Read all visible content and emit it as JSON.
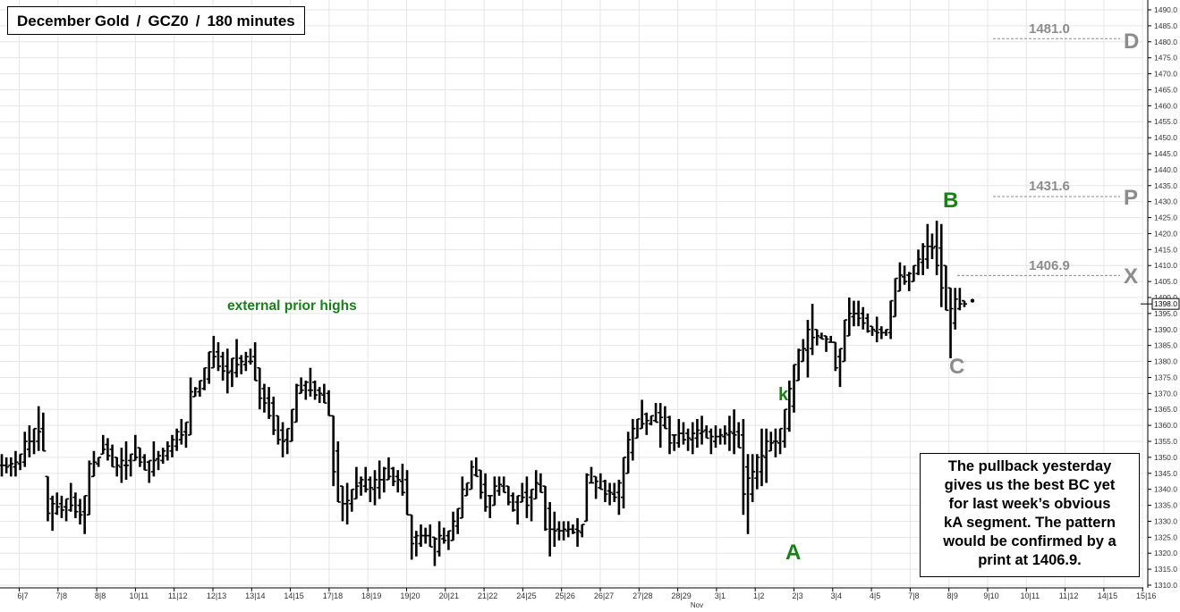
{
  "header": {
    "title_parts": [
      "December Gold",
      "GCZ0",
      "180 minutes"
    ]
  },
  "note": {
    "lines": [
      "The pullback yesterday",
      "gives us the best BC yet",
      "for last week’s obvious",
      "kA segment.  The pattern",
      "would be confirmed by a",
      "print at 1406.9."
    ]
  },
  "annotations": {
    "external_prior_highs": "external prior highs",
    "k": "k",
    "A": "A",
    "B": "B",
    "C": "C",
    "D": "D",
    "P": "P",
    "X": "X",
    "level_D": "1481.0",
    "level_P": "1431.6",
    "level_X": "1406.9"
  },
  "colors": {
    "annotation_green": "#1a7f1a",
    "annotation_gray": "#8c8c8c",
    "bars": "#000000",
    "grid": "#e6e6e6"
  },
  "chart_data": {
    "type": "ohlc",
    "title": "December Gold  /  GCZ0  /  180 minutes",
    "y_axis": {
      "side": "right",
      "min": 1310,
      "max": 1490,
      "step": 5,
      "current_price": "1398.0"
    },
    "x_tick_labels": [
      "6|7",
      "7|8",
      "8|8",
      "10|11",
      "11|12",
      "12|13",
      "13|14",
      "14|15",
      "17|18",
      "18|19",
      "19|20",
      "20|21",
      "21|22",
      "24|25",
      "25|26",
      "26|27",
      "27|28",
      "28|29",
      "3|1",
      "1|2",
      "2|3",
      "3|4",
      "4|5",
      "7|8",
      "8|9",
      "9|10",
      "10|11",
      "11|12",
      "14|15",
      "15|16"
    ],
    "x_sublabel": "Nov",
    "levels": [
      {
        "label": "D",
        "value": 1481.0
      },
      {
        "label": "P",
        "value": 1431.6
      },
      {
        "label": "X",
        "value": 1406.9
      }
    ],
    "points": [
      {
        "label": "k",
        "value": 1365
      },
      {
        "label": "A",
        "value": 1326
      },
      {
        "label": "B",
        "value": 1424
      },
      {
        "label": "C",
        "value": 1382
      }
    ],
    "bars_hl": [
      [
        1351,
        1344
      ],
      [
        1350,
        1345
      ],
      [
        1350,
        1344
      ],
      [
        1352,
        1344
      ],
      [
        1351,
        1346
      ],
      [
        1358,
        1347
      ],
      [
        1360,
        1350
      ],
      [
        1359,
        1351
      ],
      [
        1366,
        1352
      ],
      [
        1364,
        1352
      ],
      [
        1344,
        1330
      ],
      [
        1338,
        1327
      ],
      [
        1339,
        1332
      ],
      [
        1338,
        1331
      ],
      [
        1337,
        1330
      ],
      [
        1342,
        1333
      ],
      [
        1339,
        1331
      ],
      [
        1337,
        1329
      ],
      [
        1338,
        1326
      ],
      [
        1349,
        1332
      ],
      [
        1352,
        1344
      ],
      [
        1350,
        1347
      ],
      [
        1357,
        1351
      ],
      [
        1356,
        1349
      ],
      [
        1354,
        1347
      ],
      [
        1350,
        1344
      ],
      [
        1353,
        1342
      ],
      [
        1355,
        1343
      ],
      [
        1351,
        1344
      ],
      [
        1357,
        1349
      ],
      [
        1353,
        1347
      ],
      [
        1351,
        1346
      ],
      [
        1349,
        1342
      ],
      [
        1355,
        1344
      ],
      [
        1352,
        1346
      ],
      [
        1353,
        1348
      ],
      [
        1355,
        1349
      ],
      [
        1357,
        1350
      ],
      [
        1359,
        1352
      ],
      [
        1362,
        1354
      ],
      [
        1361,
        1353
      ],
      [
        1375,
        1357
      ],
      [
        1372,
        1369
      ],
      [
        1374,
        1369
      ],
      [
        1378,
        1371
      ],
      [
        1383,
        1373
      ],
      [
        1388,
        1378
      ],
      [
        1386,
        1377
      ],
      [
        1383,
        1374
      ],
      [
        1384,
        1370
      ],
      [
        1381,
        1372
      ],
      [
        1387,
        1375
      ],
      [
        1382,
        1376
      ],
      [
        1383,
        1377
      ],
      [
        1384,
        1379
      ],
      [
        1386,
        1374
      ],
      [
        1378,
        1365
      ],
      [
        1373,
        1364
      ],
      [
        1372,
        1362
      ],
      [
        1369,
        1357
      ],
      [
        1363,
        1354
      ],
      [
        1361,
        1350
      ],
      [
        1359,
        1351
      ],
      [
        1365,
        1355
      ],
      [
        1373,
        1361
      ],
      [
        1375,
        1370
      ],
      [
        1374,
        1368
      ],
      [
        1378,
        1369
      ],
      [
        1374,
        1368
      ],
      [
        1372,
        1367
      ],
      [
        1373,
        1367
      ],
      [
        1371,
        1363
      ],
      [
        1363,
        1341
      ],
      [
        1355,
        1336
      ],
      [
        1341,
        1330
      ],
      [
        1342,
        1329
      ],
      [
        1340,
        1333
      ],
      [
        1347,
        1337
      ],
      [
        1344,
        1338
      ],
      [
        1347,
        1339
      ],
      [
        1344,
        1336
      ],
      [
        1346,
        1335
      ],
      [
        1349,
        1337
      ],
      [
        1347,
        1339
      ],
      [
        1350,
        1343
      ],
      [
        1347,
        1341
      ],
      [
        1346,
        1339
      ],
      [
        1348,
        1338
      ],
      [
        1346,
        1332
      ],
      [
        1332,
        1318
      ],
      [
        1327,
        1319
      ],
      [
        1329,
        1322
      ],
      [
        1328,
        1323
      ],
      [
        1329,
        1322
      ],
      [
        1325,
        1316
      ],
      [
        1330,
        1319
      ],
      [
        1328,
        1323
      ],
      [
        1327,
        1321
      ],
      [
        1333,
        1324
      ],
      [
        1334,
        1326
      ],
      [
        1344,
        1331
      ],
      [
        1342,
        1338
      ],
      [
        1349,
        1340
      ],
      [
        1350,
        1344
      ],
      [
        1346,
        1337
      ],
      [
        1345,
        1333
      ],
      [
        1338,
        1331
      ],
      [
        1344,
        1335
      ],
      [
        1344,
        1338
      ],
      [
        1344,
        1339
      ],
      [
        1341,
        1335
      ],
      [
        1339,
        1333
      ],
      [
        1338,
        1329
      ],
      [
        1342,
        1336
      ],
      [
        1344,
        1331
      ],
      [
        1340,
        1330
      ],
      [
        1346,
        1337
      ],
      [
        1345,
        1339
      ],
      [
        1341,
        1327
      ],
      [
        1336,
        1319
      ],
      [
        1333,
        1322
      ],
      [
        1330,
        1324
      ],
      [
        1330,
        1324
      ],
      [
        1330,
        1325
      ],
      [
        1329,
        1326
      ],
      [
        1331,
        1322
      ],
      [
        1329,
        1325
      ],
      [
        1345,
        1330
      ],
      [
        1347,
        1342
      ],
      [
        1344,
        1337
      ],
      [
        1345,
        1340
      ],
      [
        1343,
        1336
      ],
      [
        1342,
        1335
      ],
      [
        1342,
        1336
      ],
      [
        1343,
        1332
      ],
      [
        1350,
        1334
      ],
      [
        1358,
        1345
      ],
      [
        1362,
        1349
      ],
      [
        1362,
        1356
      ],
      [
        1368,
        1359
      ],
      [
        1364,
        1357
      ],
      [
        1363,
        1360
      ],
      [
        1367,
        1361
      ],
      [
        1367,
        1353
      ],
      [
        1366,
        1359
      ],
      [
        1363,
        1351
      ],
      [
        1357,
        1352
      ],
      [
        1362,
        1353
      ],
      [
        1361,
        1354
      ],
      [
        1359,
        1352
      ],
      [
        1361,
        1351
      ],
      [
        1362,
        1353
      ],
      [
        1363,
        1354
      ],
      [
        1360,
        1356
      ],
      [
        1359,
        1351
      ],
      [
        1360,
        1353
      ],
      [
        1359,
        1354
      ],
      [
        1360,
        1354
      ],
      [
        1363,
        1352
      ],
      [
        1365,
        1351
      ],
      [
        1361,
        1353
      ],
      [
        1362,
        1332
      ],
      [
        1351,
        1326
      ],
      [
        1351,
        1336
      ],
      [
        1351,
        1340
      ],
      [
        1359,
        1341
      ],
      [
        1359,
        1342
      ],
      [
        1358,
        1352
      ],
      [
        1359,
        1350
      ],
      [
        1359,
        1351
      ],
      [
        1365,
        1353
      ],
      [
        1374,
        1358
      ],
      [
        1379,
        1364
      ],
      [
        1384,
        1374
      ],
      [
        1387,
        1380
      ],
      [
        1393,
        1375
      ],
      [
        1398,
        1382
      ],
      [
        1390,
        1385
      ],
      [
        1389,
        1387
      ],
      [
        1388,
        1383
      ],
      [
        1388,
        1386
      ],
      [
        1386,
        1377
      ],
      [
        1384,
        1372
      ],
      [
        1393,
        1380
      ],
      [
        1400,
        1388
      ],
      [
        1399,
        1391
      ],
      [
        1399,
        1391
      ],
      [
        1397,
        1390
      ],
      [
        1395,
        1389
      ],
      [
        1391,
        1388
      ],
      [
        1394,
        1386
      ],
      [
        1391,
        1387
      ],
      [
        1390,
        1388
      ],
      [
        1399,
        1387
      ],
      [
        1406,
        1394
      ],
      [
        1411,
        1402
      ],
      [
        1410,
        1404
      ],
      [
        1408,
        1402
      ],
      [
        1410,
        1405
      ],
      [
        1415,
        1407
      ],
      [
        1417,
        1407
      ],
      [
        1423,
        1409
      ],
      [
        1420,
        1412
      ],
      [
        1424,
        1407
      ],
      [
        1423,
        1397
      ],
      [
        1410,
        1396
      ],
      [
        1403,
        1381
      ],
      [
        1403,
        1390
      ],
      [
        1403,
        1396
      ],
      [
        1399,
        1397
      ]
    ]
  }
}
